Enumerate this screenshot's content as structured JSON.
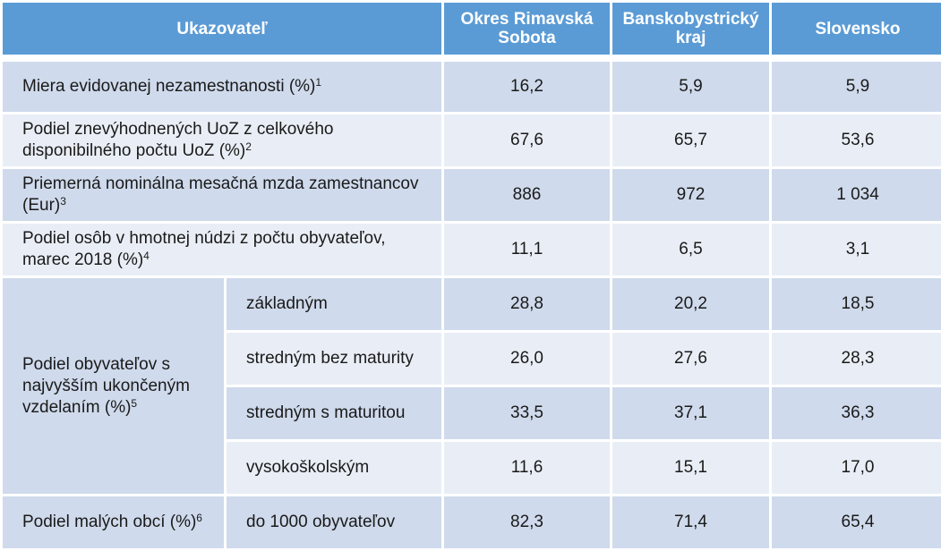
{
  "headers": [
    "Ukazovateľ",
    "Okres Rimavská Sobota",
    "Banskobystrický kraj",
    "Slovensko"
  ],
  "rows": [
    {
      "label": "Miera evidovanej nezamestnanosti (%)",
      "sup": "1",
      "values": [
        "16,2",
        "5,9",
        "5,9"
      ]
    },
    {
      "label": "Podiel znevýhodnených UoZ z celkového disponibilného počtu UoZ (%)",
      "sup": "2",
      "values": [
        "67,6",
        "65,7",
        "53,6"
      ]
    },
    {
      "label": "Priemerná nominálna mesačná mzda zamestnancov (Eur)",
      "sup": "3",
      "values": [
        "886",
        "972",
        "1 034"
      ]
    },
    {
      "label": "Podiel osôb v hmotnej núdzi z počtu obyvateľov, marec 2018 (%)",
      "sup": "4",
      "values": [
        "11,1",
        "6,5",
        "3,1"
      ]
    }
  ],
  "education": {
    "label": "Podiel obyvateľov s najvyšším ukončeným vzdelaním (%)",
    "sup": "5",
    "items": [
      {
        "label": "základným",
        "values": [
          "28,8",
          "20,2",
          "18,5"
        ]
      },
      {
        "label": "stredným bez maturity",
        "values": [
          "26,0",
          "27,6",
          "28,3"
        ]
      },
      {
        "label": "stredným s maturitou",
        "values": [
          "33,5",
          "37,1",
          "36,3"
        ]
      },
      {
        "label": "vysokoškolským",
        "values": [
          "11,6",
          "15,1",
          "17,0"
        ]
      }
    ]
  },
  "small_villages": {
    "label": "Podiel malých obcí (%)",
    "sup": "6",
    "sublabel": "do 1000 obyvateľov",
    "values": [
      "82,3",
      "71,4",
      "65,4"
    ]
  },
  "colors": {
    "header": "#5b9bd5",
    "row_dark": "#cfdaec",
    "row_light": "#e9eef6"
  }
}
